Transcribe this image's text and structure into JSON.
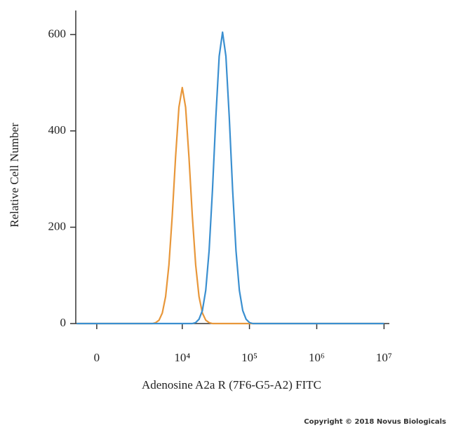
{
  "chart_data": {
    "type": "line",
    "x_label": "Adenosine A2a R (7F6-G5-A2) FITC",
    "y_label": "Relative Cell Number",
    "annotation": "Copyright © 2018 Novus Biologicals",
    "xscale": "biexponential",
    "xlim": [
      -840,
      12000000
    ],
    "xticks": [
      0,
      {
        "value": 10000,
        "label": "10⁴"
      },
      {
        "value": 100000,
        "label": "10⁵"
      },
      {
        "value": 1000000,
        "label": "10⁶"
      },
      {
        "value": 10000000,
        "label": "10⁷"
      }
    ],
    "ylim": [
      0,
      650
    ],
    "yticks": [
      0,
      200,
      400,
      600
    ],
    "series": [
      {
        "color": "#e8973a",
        "x": [
          -800,
          1000,
          3162,
          3548,
          3981,
          4467,
          5012,
          5623,
          6310,
          7079,
          7943,
          8913,
          10000,
          11220,
          12589,
          14125,
          15849,
          17783,
          19953,
          22387,
          25119,
          28184,
          31623,
          10000000
        ],
        "values": [
          0,
          0,
          0,
          0,
          2,
          7,
          22,
          56,
          122,
          224,
          346,
          449,
          490,
          449,
          346,
          224,
          122,
          56,
          22,
          7,
          2,
          0,
          0,
          0
        ]
      },
      {
        "color": "#3a8fd0",
        "x": [
          -800,
          12589,
          14125,
          15849,
          17783,
          19953,
          22387,
          25119,
          28184,
          31623,
          35481,
          39811,
          44668,
          50119,
          56234,
          63096,
          70795,
          79433,
          89125,
          100000,
          112202,
          125893,
          10000000
        ],
        "values": [
          0,
          0,
          0,
          2,
          9,
          27,
          69,
          151,
          277,
          428,
          555,
          605,
          555,
          428,
          277,
          151,
          69,
          27,
          9,
          2,
          0,
          0,
          0
        ]
      }
    ]
  }
}
